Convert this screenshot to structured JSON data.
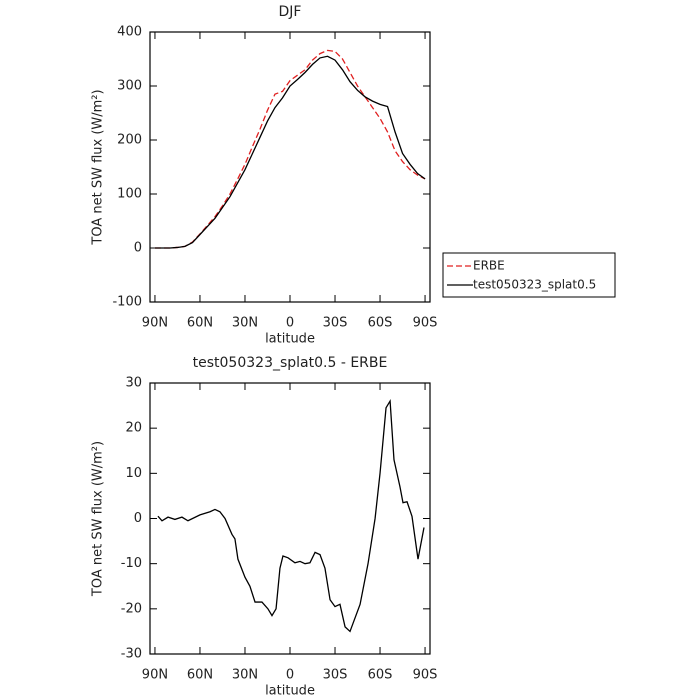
{
  "chart_data": [
    {
      "type": "line",
      "title": "DJF",
      "x_label": "latitude",
      "y_label": "TOA net SW flux (W/m²)",
      "x": [
        90,
        85,
        80,
        75,
        70,
        65,
        60,
        55,
        50,
        45,
        40,
        35,
        30,
        25,
        20,
        15,
        10,
        5,
        0,
        -5,
        -10,
        -15,
        -20,
        -25,
        -30,
        -35,
        -40,
        -45,
        -50,
        -55,
        -60,
        -65,
        -70,
        -75,
        -80,
        -85,
        -90
      ],
      "series": [
        {
          "name": "ERBE",
          "color": "#e02020",
          "dash": true,
          "values": [
            0,
            0,
            0,
            1,
            3,
            11,
            26,
            42,
            58,
            78,
            100,
            127,
            155,
            188,
            220,
            255,
            285,
            290,
            310,
            320,
            330,
            348,
            360,
            366,
            364,
            350,
            325,
            300,
            280,
            260,
            240,
            215,
            180,
            160,
            145,
            135,
            128
          ]
        },
        {
          "name": "test050323_splat0.5",
          "color": "#000000",
          "dash": false,
          "values": [
            0,
            0,
            0,
            1,
            3,
            10,
            25,
            40,
            55,
            75,
            95,
            120,
            145,
            175,
            205,
            235,
            260,
            278,
            300,
            312,
            325,
            340,
            352,
            355,
            348,
            330,
            308,
            292,
            280,
            272,
            266,
            262,
            215,
            175,
            155,
            138,
            128
          ]
        }
      ],
      "xlim": [
        93.3,
        -93.3
      ],
      "xticks": [
        {
          "value": 90,
          "label": "90N"
        },
        {
          "value": 60,
          "label": "60N"
        },
        {
          "value": 30,
          "label": "30N"
        },
        0,
        {
          "value": -30,
          "label": "30S"
        },
        {
          "value": -60,
          "label": "60S"
        },
        {
          "value": -90,
          "label": "90S"
        }
      ],
      "ylim": [
        -100,
        400
      ],
      "yticks": [
        -100,
        0,
        100,
        200,
        300,
        400
      ],
      "legend": "outside right"
    },
    {
      "type": "line",
      "title": "test050323_splat0.5 - ERBE",
      "x_label": "latitude",
      "y_label": "TOA net SW flux (W/m²)",
      "x": [
        88,
        85.3,
        81.3,
        76.7,
        72,
        68,
        60,
        53.3,
        50,
        46.7,
        43.3,
        38.7,
        36.7,
        34.7,
        30,
        26.7,
        23.3,
        18.7,
        14.7,
        12,
        9.3,
        6.7,
        4.7,
        1.3,
        -3.3,
        -6.7,
        -10,
        -13.3,
        -16.7,
        -20,
        -23.3,
        -26.7,
        -30,
        -33.3,
        -36.7,
        -40,
        -46.7,
        -52,
        -56.7,
        -60,
        -64,
        -66.7,
        -69.3,
        -73.3,
        -75.3,
        -78,
        -81.3,
        -85.3,
        -89.3
      ],
      "values": [
        0.5,
        -0.5,
        0.3,
        -0.2,
        0.3,
        -0.5,
        0.8,
        1.5,
        2,
        1.5,
        0,
        -3.5,
        -4.5,
        -9,
        -13,
        -15,
        -18.5,
        -18.5,
        -20,
        -21.5,
        -20,
        -11,
        -8.3,
        -8.7,
        -9.8,
        -9.5,
        -10,
        -9.8,
        -7.5,
        -8,
        -11,
        -18,
        -19.5,
        -19,
        -24,
        -25,
        -19,
        -10,
        0,
        10,
        24.5,
        26,
        13,
        7,
        3.5,
        3.7,
        0.5,
        -9,
        -2
      ],
      "color": "#000000",
      "xlim": [
        93.3,
        -93.3
      ],
      "xticks": [
        {
          "value": 90,
          "label": "90N"
        },
        {
          "value": 60,
          "label": "60N"
        },
        {
          "value": 30,
          "label": "30N"
        },
        0,
        {
          "value": -30,
          "label": "30S"
        },
        {
          "value": -60,
          "label": "60S"
        },
        {
          "value": -90,
          "label": "90S"
        }
      ],
      "ylim": [
        -30,
        30
      ],
      "yticks": [
        -30,
        -20,
        -10,
        0,
        10,
        20,
        30
      ]
    }
  ]
}
